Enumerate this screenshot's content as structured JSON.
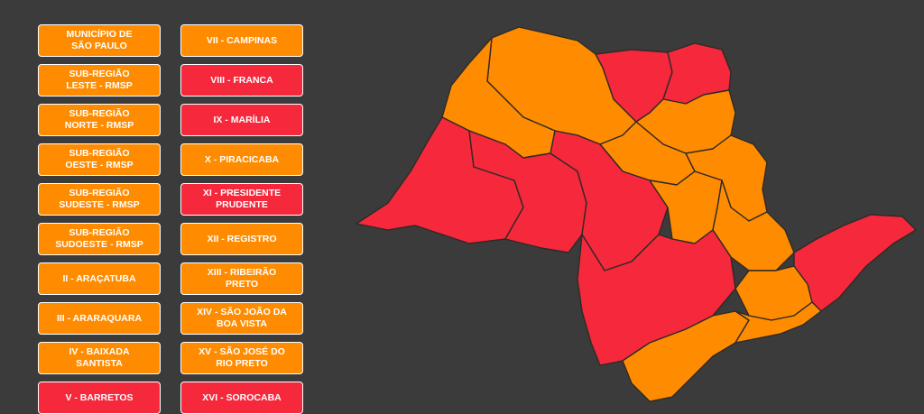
{
  "colors": {
    "background": "#3b3b3b",
    "orange": "#ff8c00",
    "red": "#f5283c",
    "border": "#ffffff"
  },
  "legend": {
    "items": [
      {
        "label": "MUNICÍPIO DE\nSÃO PAULO",
        "status": "orange"
      },
      {
        "label": "VII - CAMPINAS",
        "status": "orange"
      },
      {
        "label": "SUB-REGIÃO\nLESTE - RMSP",
        "status": "orange"
      },
      {
        "label": "VIII - FRANCA",
        "status": "red"
      },
      {
        "label": "SUB-REGIÃO\nNORTE - RMSP",
        "status": "orange"
      },
      {
        "label": "IX - MARÍLIA",
        "status": "red"
      },
      {
        "label": "SUB-REGIÃO\nOESTE - RMSP",
        "status": "orange"
      },
      {
        "label": "X - PIRACICABA",
        "status": "orange"
      },
      {
        "label": "SUB-REGIÃO\nSUDESTE - RMSP",
        "status": "orange"
      },
      {
        "label": "XI - PRESIDENTE\nPRUDENTE",
        "status": "red"
      },
      {
        "label": "SUB-REGIÃO\nSUDOESTE - RMSP",
        "status": "orange"
      },
      {
        "label": "XII - REGISTRO",
        "status": "orange"
      },
      {
        "label": "II - ARAÇATUBA",
        "status": "orange"
      },
      {
        "label": "XIII - RIBEIRÃO\nPRETO",
        "status": "orange"
      },
      {
        "label": "III - ARARAQUARA",
        "status": "orange"
      },
      {
        "label": "XIV - SÃO JOÃO DA\nBOA VISTA",
        "status": "orange"
      },
      {
        "label": "IV - BAIXADA\nSANTISTA",
        "status": "orange"
      },
      {
        "label": "XV - SÃO JOSÉ DO\nRIO PRETO",
        "status": "orange"
      },
      {
        "label": "V - BARRETOS",
        "status": "red"
      },
      {
        "label": "XVI - SOROCABA",
        "status": "red"
      }
    ]
  }
}
